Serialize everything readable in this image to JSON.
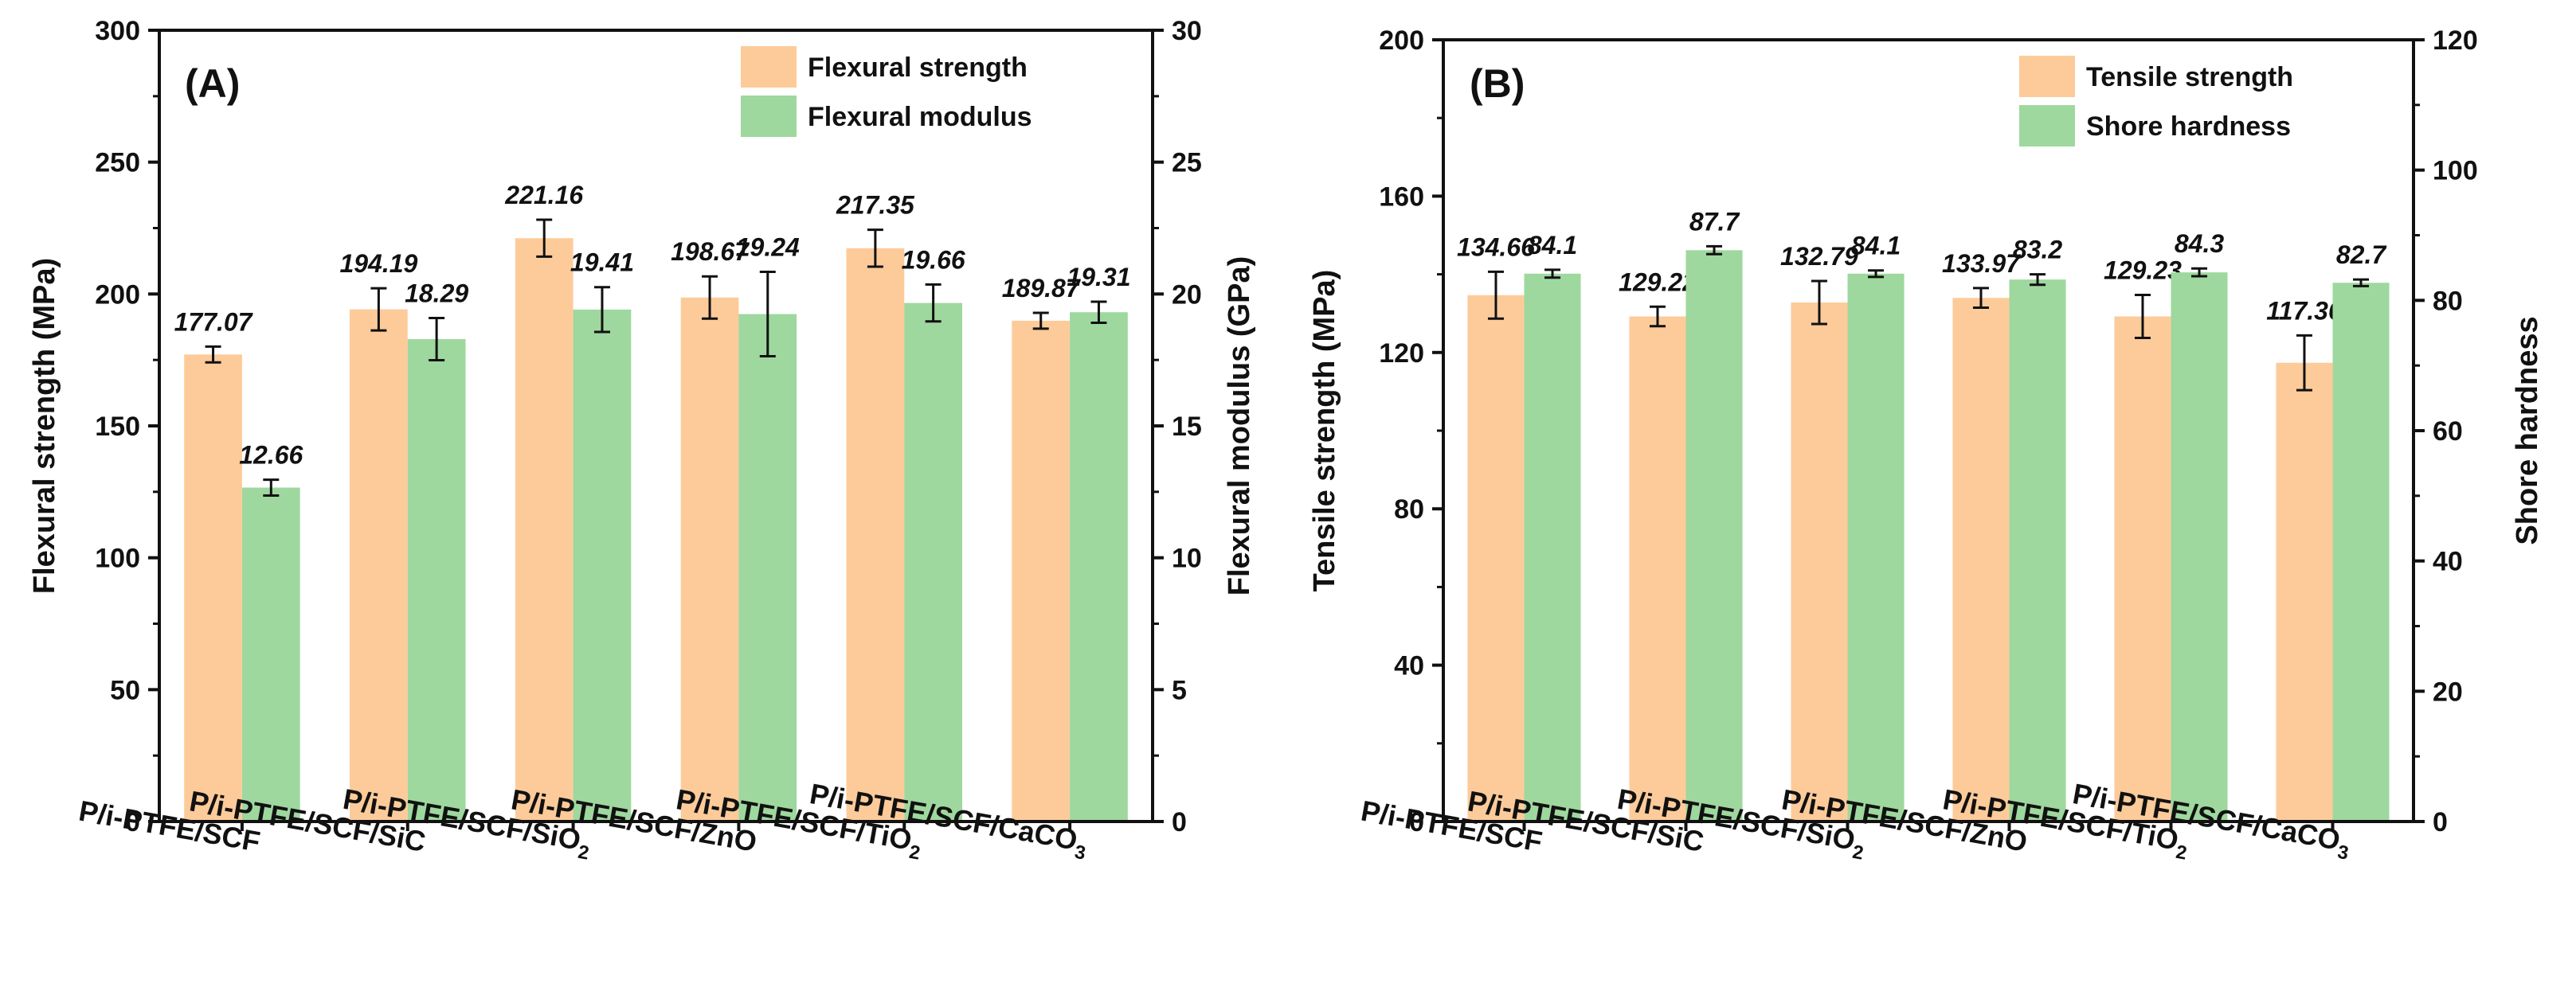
{
  "colors": {
    "primary_bar": "#FDCB9A",
    "secondary_bar": "#9ED89E",
    "axis": "#111111"
  },
  "chart_data": [
    {
      "type": "bar",
      "panel_label": "(A)",
      "categories": [
        {
          "main": "P/i-PTFE/SCF",
          "sub": "",
          "tail": ""
        },
        {
          "main": "P/i-PTFE/SCF/SiC",
          "sub": "",
          "tail": ""
        },
        {
          "main": "P/i-PTFE/SCF/SiO",
          "sub": "2",
          "tail": ""
        },
        {
          "main": "P/i-PTFE/SCF/ZnO",
          "sub": "",
          "tail": ""
        },
        {
          "main": "P/i-PTFE/SCF/TiO",
          "sub": "2",
          "tail": ""
        },
        {
          "main": "P/i-PTFE/SCF/CaCO",
          "sub": "3",
          "tail": ""
        }
      ],
      "left_axis": {
        "label": "Flexural strength (MPa)",
        "ylim": [
          0,
          300
        ],
        "ticks": [
          "0",
          "50",
          "100",
          "150",
          "200",
          "250",
          "300"
        ]
      },
      "right_axis": {
        "label": "Flexural modulus (GPa)",
        "ylim": [
          0,
          30
        ],
        "ticks": [
          "0",
          "5",
          "10",
          "15",
          "20",
          "25",
          "30"
        ]
      },
      "series": [
        {
          "name": "Flexural strength",
          "axis": "left",
          "values": [
            177.07,
            194.19,
            221.16,
            198.67,
            217.35,
            189.87
          ],
          "errors": [
            3,
            8,
            7,
            8,
            7,
            3
          ],
          "labels": [
            "177.07",
            "194.19",
            "221.16",
            "198.67",
            "217.35",
            "189.87"
          ]
        },
        {
          "name": "Flexural modulus",
          "axis": "right",
          "values": [
            12.66,
            18.29,
            19.41,
            19.24,
            19.66,
            19.31
          ],
          "errors": [
            0.3,
            0.8,
            0.85,
            1.6,
            0.7,
            0.4
          ],
          "labels": [
            "12.66",
            "18.29",
            "19.41",
            "19.24",
            "19.66",
            "19.31"
          ]
        }
      ],
      "legend_position": "top-right"
    },
    {
      "type": "bar",
      "panel_label": "(B)",
      "categories": [
        {
          "main": "P/i-PTFE/SCF",
          "sub": "",
          "tail": ""
        },
        {
          "main": "P/i-PTFE/SCF/SiC",
          "sub": "",
          "tail": ""
        },
        {
          "main": "P/i-PTFE/SCF/SiO",
          "sub": "2",
          "tail": ""
        },
        {
          "main": "P/i-PTFE/SCF/ZnO",
          "sub": "",
          "tail": ""
        },
        {
          "main": "P/i-PTFE/SCF/TiO",
          "sub": "2",
          "tail": ""
        },
        {
          "main": "P/i-PTFE/SCF/CaCO",
          "sub": "3",
          "tail": ""
        }
      ],
      "left_axis": {
        "label": "Tensile strength (MPa)",
        "ylim": [
          0,
          200
        ],
        "ticks": [
          "0",
          "40",
          "80",
          "120",
          "160",
          "200"
        ]
      },
      "right_axis": {
        "label": "Shore hardness",
        "ylim": [
          0,
          120
        ],
        "ticks": [
          "0",
          "20",
          "40",
          "60",
          "80",
          "100",
          "120"
        ]
      },
      "series": [
        {
          "name": "Tensile strength",
          "axis": "left",
          "values": [
            134.66,
            129.22,
            132.79,
            133.97,
            129.23,
            117.36
          ],
          "errors": [
            6,
            2.5,
            5.5,
            2.5,
            5.5,
            7
          ],
          "labels": [
            "134.66",
            "129.22",
            "132.79",
            "133.97",
            "129.23",
            "117.36"
          ]
        },
        {
          "name": "Shore hardness",
          "axis": "right",
          "values": [
            84.1,
            87.7,
            84.1,
            83.2,
            84.3,
            82.7
          ],
          "errors": [
            0.6,
            0.6,
            0.5,
            0.8,
            0.6,
            0.5
          ],
          "labels": [
            "84.1",
            "87.7",
            "84.1",
            "83.2",
            "84.3",
            "82.7"
          ]
        }
      ],
      "legend_position": "top-right"
    }
  ]
}
